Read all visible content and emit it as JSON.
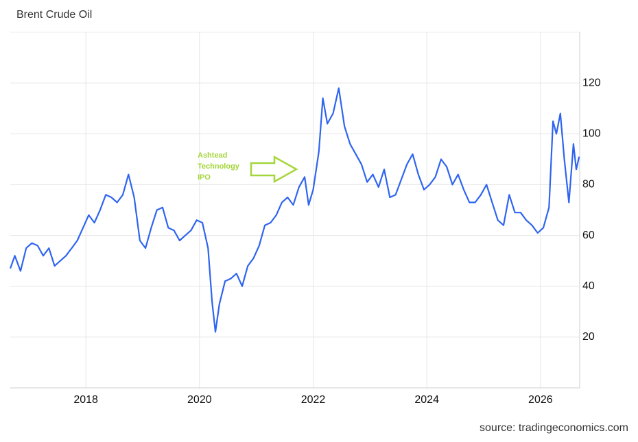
{
  "chart_data": {
    "type": "line",
    "title": "Brent Crude Oil",
    "source": "source: tradingeconomics.com",
    "annotation": [
      "Ashtead",
      "Technology",
      "IPO"
    ],
    "xlim": [
      2016.67,
      2026.69
    ],
    "xticks": [
      2018,
      2020,
      2022,
      2024,
      2026
    ],
    "ylim": [
      0,
      140
    ],
    "yticks": [
      20,
      40,
      60,
      80,
      100,
      120
    ],
    "grid": true,
    "series": [
      {
        "name": "Brent Crude Oil",
        "color": "#2e64f0",
        "x": [
          2016.67,
          2016.75,
          2016.85,
          2016.95,
          2017.05,
          2017.15,
          2017.25,
          2017.35,
          2017.45,
          2017.55,
          2017.65,
          2017.75,
          2017.85,
          2017.95,
          2018.05,
          2018.15,
          2018.25,
          2018.35,
          2018.45,
          2018.55,
          2018.65,
          2018.75,
          2018.85,
          2018.95,
          2019.05,
          2019.15,
          2019.25,
          2019.35,
          2019.45,
          2019.55,
          2019.65,
          2019.75,
          2019.85,
          2019.95,
          2020.05,
          2020.15,
          2020.22,
          2020.28,
          2020.35,
          2020.45,
          2020.55,
          2020.65,
          2020.75,
          2020.85,
          2020.95,
          2021.05,
          2021.15,
          2021.25,
          2021.35,
          2021.45,
          2021.55,
          2021.65,
          2021.75,
          2021.85,
          2021.92,
          2022.0,
          2022.1,
          2022.17,
          2022.25,
          2022.35,
          2022.45,
          2022.55,
          2022.65,
          2022.75,
          2022.85,
          2022.95,
          2023.05,
          2023.15,
          2023.25,
          2023.35,
          2023.45,
          2023.55,
          2023.65,
          2023.75,
          2023.85,
          2023.95,
          2024.05,
          2024.15,
          2024.25,
          2024.35,
          2024.45,
          2024.55,
          2024.65,
          2024.75,
          2024.85,
          2024.95,
          2025.05,
          2025.15,
          2025.25,
          2025.35,
          2025.45,
          2025.55,
          2025.65,
          2025.75,
          2025.85,
          2025.95,
          2026.05,
          2026.15,
          2026.22,
          2026.28,
          2026.35,
          2026.42,
          2026.5,
          2026.58,
          2026.63,
          2026.68
        ],
        "values": [
          47,
          52,
          46,
          55,
          57,
          56,
          52,
          55,
          48,
          50,
          52,
          55,
          58,
          63,
          68,
          65,
          70,
          76,
          75,
          73,
          76,
          84,
          75,
          58,
          55,
          63,
          70,
          71,
          63,
          62,
          58,
          60,
          62,
          66,
          65,
          55,
          34,
          22,
          33,
          42,
          43,
          45,
          40,
          48,
          51,
          56,
          64,
          65,
          68,
          73,
          75,
          72,
          79,
          83,
          72,
          78,
          93,
          114,
          104,
          108,
          118,
          103,
          96,
          92,
          88,
          81,
          84,
          79,
          86,
          75,
          76,
          82,
          88,
          92,
          84,
          78,
          80,
          83,
          90,
          87,
          80,
          84,
          78,
          73,
          73,
          76,
          80,
          73,
          66,
          64,
          76,
          69,
          69,
          66,
          64,
          61,
          63,
          71,
          105,
          100,
          108,
          90,
          73,
          96,
          86,
          91
        ]
      }
    ]
  }
}
